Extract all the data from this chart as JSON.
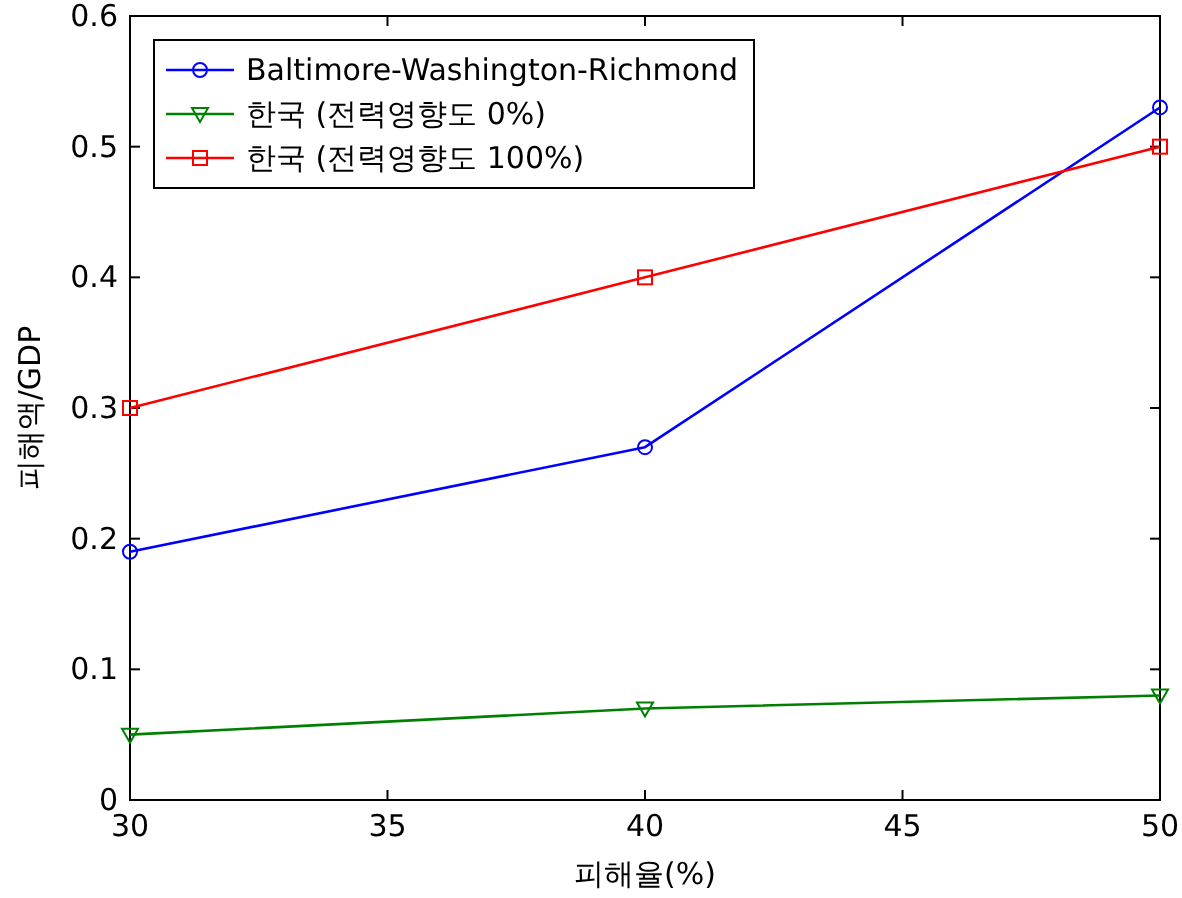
{
  "chart_data": {
    "type": "line",
    "xlabel": "피해율(%)",
    "ylabel": "피해액/GDP",
    "x": [
      30,
      40,
      50
    ],
    "xlim": [
      30,
      50
    ],
    "xticks": [
      30,
      35,
      40,
      45,
      50
    ],
    "ylim": [
      0,
      0.6
    ],
    "yticks": [
      0,
      0.1,
      0.2,
      0.3,
      0.4,
      0.5,
      0.6
    ],
    "grid": false,
    "legend": "top left",
    "line_style": "solid",
    "series": [
      {
        "name": "Baltimore-Washington-Richmond",
        "color": "#0000ff",
        "marker": "circle",
        "values": [
          0.19,
          0.27,
          0.53
        ]
      },
      {
        "name": "한국 (전력영향도 0%)",
        "color": "#008000",
        "marker": "triangle",
        "values": [
          0.05,
          0.07,
          0.08
        ]
      },
      {
        "name": "한국 (전력영향도 100%)",
        "color": "#ff0000",
        "marker": "square",
        "values": [
          0.3,
          0.4,
          0.5
        ]
      }
    ]
  }
}
